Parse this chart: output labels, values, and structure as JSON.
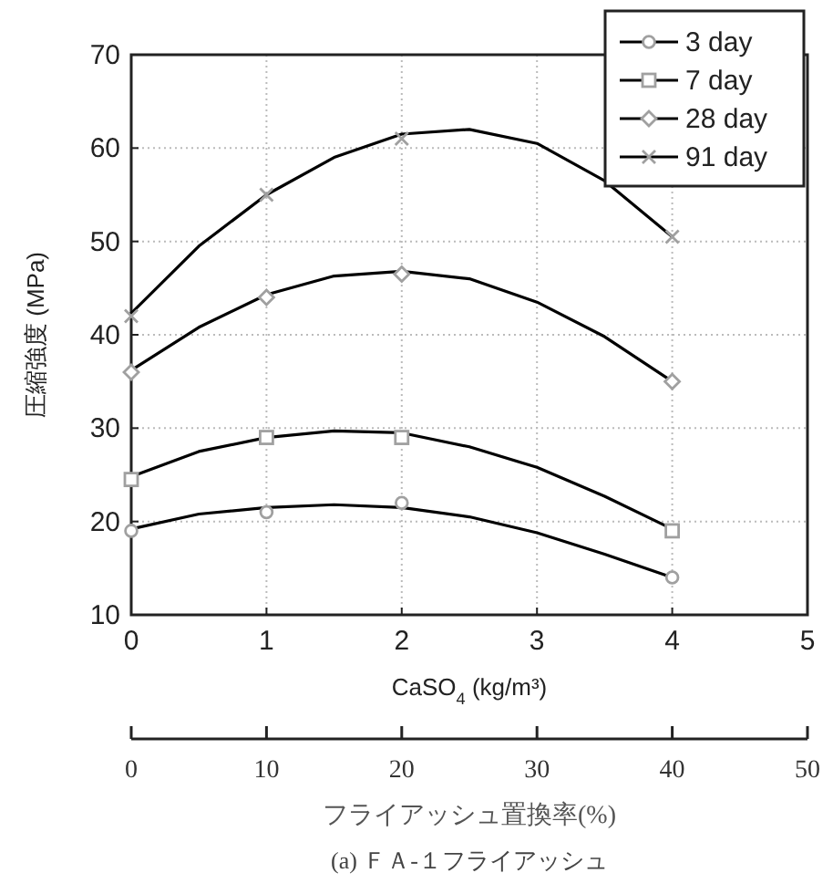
{
  "chart_data": {
    "type": "scatter",
    "xlabel": "CaSO$_{4}$ (kg/m³)",
    "ylabel": "圧縮強度 (MPa)",
    "x2label": "フライアッシュ置換率(%)",
    "annotations": [
      "(a) ＦＡ-１フライアッシュ"
    ],
    "xlim": [
      0,
      5
    ],
    "xticks": [
      0,
      1,
      2,
      3,
      4,
      5
    ],
    "ylim": [
      10,
      70
    ],
    "yticks": [
      10,
      20,
      30,
      40,
      50,
      60,
      70
    ],
    "x2lim": [
      0,
      50
    ],
    "x2ticks": [
      0,
      10,
      20,
      30,
      40,
      50
    ],
    "grid": true,
    "legend": "top right",
    "series": [
      {
        "name": "3 day",
        "marker": "circle",
        "color": "#a0a0a0",
        "x": [
          0,
          1,
          2,
          4
        ],
        "values": [
          19,
          21,
          22,
          14
        ]
      },
      {
        "name": "7 day",
        "marker": "square",
        "color": "#a0a0a0",
        "x": [
          0,
          1,
          2,
          4
        ],
        "values": [
          24.5,
          29,
          29,
          19
        ]
      },
      {
        "name": "28 day",
        "marker": "diamond",
        "color": "#a0a0a0",
        "x": [
          0,
          1,
          2,
          4
        ],
        "values": [
          36,
          44,
          46.5,
          35
        ]
      },
      {
        "name": "91 day",
        "marker": "cross",
        "color": "#a0a0a0",
        "x": [
          0,
          1,
          2,
          4
        ],
        "values": [
          42,
          55,
          61,
          50.5
        ]
      },
      {
        "type": "line",
        "color": "#000000",
        "x": [
          0,
          0.5,
          1,
          1.5,
          2,
          2.5,
          3,
          3.5,
          4
        ],
        "values": [
          19.2,
          20.8,
          21.5,
          21.8,
          21.5,
          20.5,
          18.8,
          16.5,
          14
        ]
      },
      {
        "type": "line",
        "color": "#000000",
        "x": [
          0,
          0.5,
          1,
          1.5,
          2,
          2.5,
          3,
          3.5,
          4
        ],
        "values": [
          24.8,
          27.5,
          29,
          29.7,
          29.5,
          28,
          25.8,
          22.7,
          19.2
        ]
      },
      {
        "type": "line",
        "color": "#000000",
        "x": [
          0,
          0.5,
          1,
          1.5,
          2,
          2.5,
          3,
          3.5,
          4
        ],
        "values": [
          36.2,
          40.8,
          44.3,
          46.3,
          46.8,
          46,
          43.5,
          39.8,
          35
        ]
      },
      {
        "type": "line",
        "color": "#000000",
        "x": [
          0,
          0.5,
          1,
          1.5,
          2,
          2.5,
          3,
          3.5,
          4
        ],
        "values": [
          42.3,
          49.5,
          55,
          59,
          61.5,
          62,
          60.5,
          56.5,
          50.5
        ]
      }
    ]
  }
}
